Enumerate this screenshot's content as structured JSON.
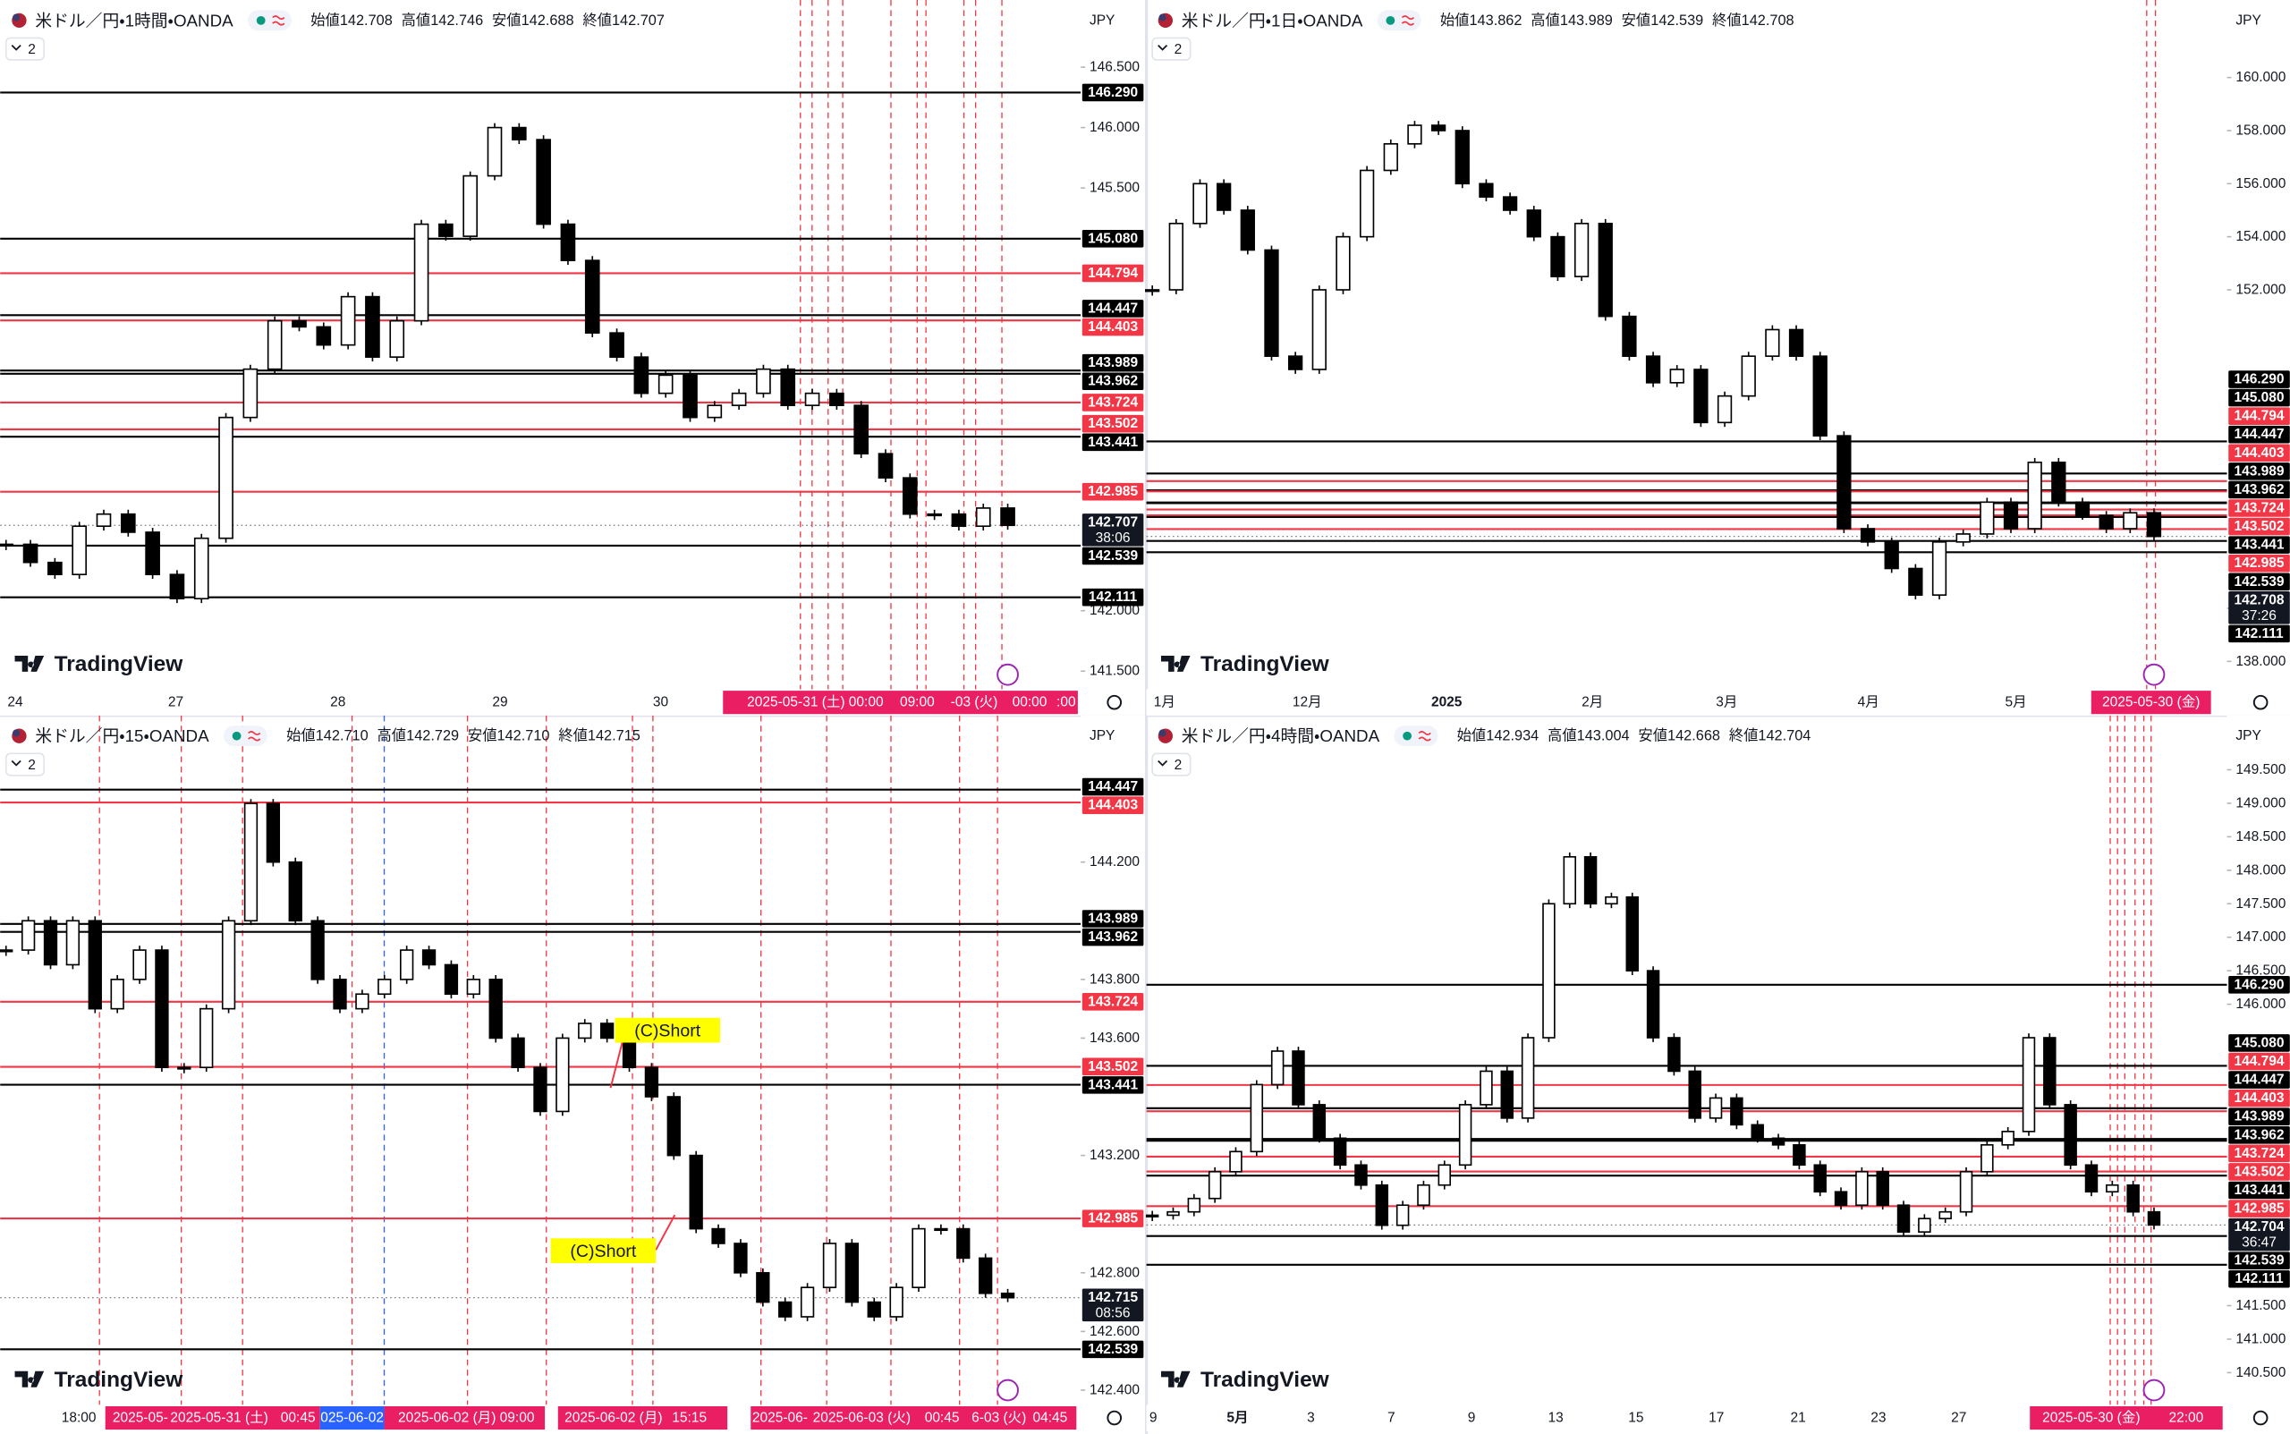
{
  "panels": [
    {
      "symbol": "米ドル／円・1時間・OANDA",
      "ohlc": [
        "始値142.708",
        "高値142.746",
        "安値142.688",
        "終値142.707"
      ],
      "currency": "JPY",
      "pane_count": "2",
      "logo": "TradingView",
      "ylim": [
        141.35,
        146.79
      ],
      "yticks": [
        {
          "value": 146.5,
          "label": "146.500"
        },
        {
          "value": 146.0,
          "label": "146.000"
        },
        {
          "value": 145.5,
          "label": "145.500"
        },
        {
          "value": 142.0,
          "label": "142.000"
        },
        {
          "value": 141.5,
          "label": "141.500"
        }
      ],
      "levels": [
        {
          "value": 146.29,
          "label": "146.290",
          "color": "#000000"
        },
        {
          "value": 145.08,
          "label": "145.080",
          "color": "#000000"
        },
        {
          "value": 144.794,
          "label": "144.794",
          "color": "#f23645"
        },
        {
          "value": 144.447,
          "label": "144.447",
          "color": "#000000"
        },
        {
          "value": 144.403,
          "label": "144.403",
          "color": "#f23645"
        },
        {
          "value": 143.989,
          "label": "143.989",
          "color": "#000000"
        },
        {
          "value": 143.962,
          "label": "143.962",
          "color": "#000000"
        },
        {
          "value": 143.724,
          "label": "143.724",
          "color": "#f23645"
        },
        {
          "value": 143.502,
          "label": "143.502",
          "color": "#f23645"
        },
        {
          "value": 143.441,
          "label": "143.441",
          "color": "#000000"
        },
        {
          "value": 142.985,
          "label": "142.985",
          "color": "#f23645"
        },
        {
          "value": 142.539,
          "label": "142.539",
          "color": "#000000"
        },
        {
          "value": 142.111,
          "label": "142.111",
          "color": "#000000"
        }
      ],
      "current": {
        "value": 142.707,
        "label": "142.707",
        "countdown": "38:06"
      },
      "closes": [
        142.55,
        142.4,
        142.3,
        142.7,
        142.8,
        142.65,
        142.3,
        142.1,
        142.6,
        143.6,
        144.0,
        144.4,
        144.35,
        144.2,
        144.6,
        144.1,
        144.4,
        145.2,
        145.1,
        145.6,
        146.0,
        145.9,
        145.2,
        144.9,
        144.3,
        144.1,
        143.8,
        143.95,
        143.6,
        143.7,
        143.8,
        144.0,
        143.7,
        143.8,
        143.7,
        143.3,
        143.1,
        142.8,
        142.8,
        142.7,
        142.85,
        142.707
      ],
      "x_labels": [
        "24",
        "27",
        "28",
        "29",
        "30"
      ],
      "time_markers": [
        "2025-05-31 (土)",
        "00:00",
        "09:00",
        "-03 (火)",
        "00:00",
        ":00"
      ]
    },
    {
      "symbol": "米ドル／円・1日・OANDA",
      "ohlc": [
        "始値143.862",
        "高値143.989",
        "安値142.539",
        "終値142.708"
      ],
      "currency": "JPY",
      "pane_count": "2",
      "logo": "TradingView",
      "ylim": [
        136.95,
        161.71
      ],
      "yticks": [
        {
          "value": 160,
          "label": "160.000"
        },
        {
          "value": 158,
          "label": "158.000"
        },
        {
          "value": 156,
          "label": "156.000"
        },
        {
          "value": 154,
          "label": "154.000"
        },
        {
          "value": 152,
          "label": "152.000"
        },
        {
          "value": 140,
          "label": "140.000"
        },
        {
          "value": 138,
          "label": "138.000"
        }
      ],
      "levels": [
        {
          "value": 146.29,
          "label": "146.290",
          "color": "#000000"
        },
        {
          "value": 145.08,
          "label": "145.080",
          "color": "#000000"
        },
        {
          "value": 144.794,
          "label": "144.794",
          "color": "#f23645"
        },
        {
          "value": 144.447,
          "label": "144.447",
          "color": "#000000"
        },
        {
          "value": 144.403,
          "label": "144.403",
          "color": "#f23645"
        },
        {
          "value": 143.989,
          "label": "143.989",
          "color": "#000000"
        },
        {
          "value": 143.962,
          "label": "143.962",
          "color": "#000000"
        },
        {
          "value": 143.724,
          "label": "143.724",
          "color": "#f23645"
        },
        {
          "value": 143.502,
          "label": "143.502",
          "color": "#f23645"
        },
        {
          "value": 143.441,
          "label": "143.441",
          "color": "#000000"
        },
        {
          "value": 142.985,
          "label": "142.985",
          "color": "#f23645"
        },
        {
          "value": 142.539,
          "label": "142.539",
          "color": "#000000"
        },
        {
          "value": 142.111,
          "label": "142.111",
          "color": "#000000"
        }
      ],
      "current": {
        "value": 142.708,
        "label": "142.708",
        "countdown": "37:26"
      },
      "closes": [
        152.0,
        154.5,
        156.0,
        155.0,
        153.5,
        149.5,
        149.0,
        152.0,
        154.0,
        156.5,
        157.5,
        158.2,
        158.0,
        156.0,
        155.5,
        155.0,
        154.0,
        152.5,
        154.5,
        151.0,
        149.5,
        148.5,
        149.0,
        147.0,
        148.0,
        149.5,
        150.5,
        149.5,
        146.5,
        143.0,
        142.5,
        141.5,
        140.5,
        142.5,
        142.8,
        144.0,
        143.0,
        145.5,
        144.0,
        143.5,
        143.0,
        143.6,
        142.708
      ],
      "x_labels": [
        "1月",
        "12月",
        "2025",
        "2月",
        "3月",
        "4月",
        "5月"
      ],
      "time_markers": [
        "2025-05-30 (金)"
      ]
    },
    {
      "symbol": "米ドル／円・15・OANDA",
      "ohlc": [
        "始値142.710",
        "高値142.729",
        "安値142.710",
        "終値142.715"
      ],
      "currency": "JPY",
      "pane_count": "2",
      "logo": "TradingView",
      "ylim": [
        142.35,
        144.59
      ],
      "yticks": [
        {
          "value": 144.2,
          "label": "144.200"
        },
        {
          "value": 143.8,
          "label": "143.800"
        },
        {
          "value": 143.6,
          "label": "143.600"
        },
        {
          "value": 143.2,
          "label": "143.200"
        },
        {
          "value": 142.8,
          "label": "142.800"
        },
        {
          "value": 142.6,
          "label": "142.600"
        },
        {
          "value": 142.4,
          "label": "142.400"
        }
      ],
      "levels": [
        {
          "value": 144.447,
          "label": "144.447",
          "color": "#000000"
        },
        {
          "value": 144.403,
          "label": "144.403",
          "color": "#f23645"
        },
        {
          "value": 143.989,
          "label": "143.989",
          "color": "#000000"
        },
        {
          "value": 143.962,
          "label": "143.962",
          "color": "#000000"
        },
        {
          "value": 143.724,
          "label": "143.724",
          "color": "#f23645"
        },
        {
          "value": 143.502,
          "label": "143.502",
          "color": "#f23645"
        },
        {
          "value": 143.441,
          "label": "143.441",
          "color": "#000000"
        },
        {
          "value": 142.985,
          "label": "142.985",
          "color": "#f23645"
        },
        {
          "value": 142.539,
          "label": "142.539",
          "color": "#000000"
        }
      ],
      "current": {
        "value": 142.715,
        "label": "142.715",
        "countdown": "08:56"
      },
      "closes": [
        143.9,
        144.0,
        143.85,
        144.0,
        143.7,
        143.8,
        143.9,
        143.5,
        143.5,
        143.7,
        144.0,
        144.4,
        144.2,
        144.0,
        143.8,
        143.7,
        143.75,
        143.8,
        143.9,
        143.85,
        143.75,
        143.8,
        143.6,
        143.5,
        143.35,
        143.6,
        143.65,
        143.6,
        143.5,
        143.4,
        143.2,
        142.95,
        142.9,
        142.8,
        142.7,
        142.65,
        142.75,
        142.9,
        142.7,
        142.65,
        142.75,
        142.95,
        142.95,
        142.85,
        142.73,
        142.715
      ],
      "x_labels": [
        "18:00"
      ],
      "time_markers": [
        "2025-05-",
        "2025-05-31 (土)",
        "00:45",
        "025-06-02",
        "2025-06-02 (月)",
        "09:00",
        "2025-06-02 (月)",
        "15:15",
        "2025-06-",
        "2025-06-03 (火)",
        "00:45",
        "6-03 (火)",
        "04:45"
      ],
      "annotations": [
        "(C)Short",
        "(C)Short"
      ]
    },
    {
      "symbol": "米ドル／円・4時間・OANDA",
      "ohlc": [
        "始値142.934",
        "高値143.004",
        "安値142.668",
        "終値142.704"
      ],
      "currency": "JPY",
      "pane_count": "2",
      "logo": "TradingView",
      "ylim": [
        140.02,
        149.83
      ],
      "yticks": [
        {
          "value": 149.5,
          "label": "149.500"
        },
        {
          "value": 149.0,
          "label": "149.000"
        },
        {
          "value": 148.5,
          "label": "148.500"
        },
        {
          "value": 148.0,
          "label": "148.000"
        },
        {
          "value": 147.5,
          "label": "147.500"
        },
        {
          "value": 147.0,
          "label": "147.000"
        },
        {
          "value": 146.5,
          "label": "146.500"
        },
        {
          "value": 146.0,
          "label": "146.000"
        },
        {
          "value": 141.5,
          "label": "141.500"
        },
        {
          "value": 141.0,
          "label": "141.000"
        },
        {
          "value": 140.5,
          "label": "140.500"
        }
      ],
      "levels": [
        {
          "value": 146.29,
          "label": "146.290",
          "color": "#000000"
        },
        {
          "value": 145.08,
          "label": "145.080",
          "color": "#000000"
        },
        {
          "value": 144.794,
          "label": "144.794",
          "color": "#f23645"
        },
        {
          "value": 144.447,
          "label": "144.447",
          "color": "#000000"
        },
        {
          "value": 144.403,
          "label": "144.403",
          "color": "#f23645"
        },
        {
          "value": 143.989,
          "label": "143.989",
          "color": "#000000"
        },
        {
          "value": 143.962,
          "label": "143.962",
          "color": "#000000"
        },
        {
          "value": 143.724,
          "label": "143.724",
          "color": "#f23645"
        },
        {
          "value": 143.502,
          "label": "143.502",
          "color": "#f23645"
        },
        {
          "value": 143.441,
          "label": "143.441",
          "color": "#000000"
        },
        {
          "value": 142.985,
          "label": "142.985",
          "color": "#f23645"
        },
        {
          "value": 142.539,
          "label": "142.539",
          "color": "#000000"
        },
        {
          "value": 142.111,
          "label": "142.111",
          "color": "#000000"
        }
      ],
      "current": {
        "value": 142.704,
        "label": "142.704",
        "countdown": "36:47"
      },
      "closes": [
        142.85,
        142.9,
        143.1,
        143.5,
        143.8,
        144.8,
        145.3,
        144.5,
        144.0,
        143.6,
        143.3,
        142.7,
        143.0,
        143.3,
        143.6,
        144.5,
        145.0,
        144.3,
        145.5,
        147.5,
        148.2,
        147.5,
        147.6,
        146.5,
        145.5,
        145.0,
        144.3,
        144.6,
        144.2,
        144.0,
        143.9,
        143.6,
        143.2,
        143.0,
        143.5,
        143.0,
        142.6,
        142.8,
        142.9,
        143.5,
        143.9,
        144.1,
        145.5,
        144.5,
        143.6,
        143.2,
        143.3,
        142.9,
        142.704
      ],
      "x_labels": [
        "9",
        "5月",
        "3",
        "7",
        "9",
        "13",
        "15",
        "17",
        "21",
        "23",
        "27"
      ],
      "time_markers": [
        "2025-05-30 (金)",
        "22:00"
      ]
    }
  ]
}
